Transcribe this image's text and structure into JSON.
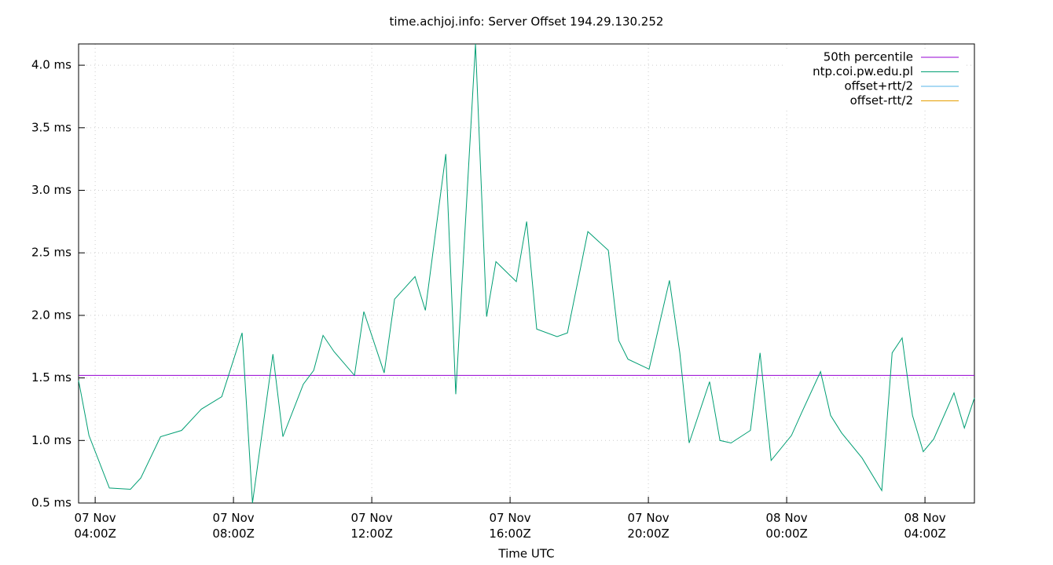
{
  "chart_data": {
    "type": "line",
    "title": "time.achjoj.info: Server Offset 194.29.130.252",
    "x_label": "Time UTC",
    "x": [
      3.52,
      3.82,
      4.41,
      5.02,
      5.32,
      5.89,
      6.5,
      7.07,
      7.66,
      8.25,
      8.55,
      9.14,
      9.43,
      10.02,
      10.32,
      10.59,
      10.91,
      11.5,
      11.77,
      12.36,
      12.66,
      13.25,
      13.55,
      14.14,
      14.43,
      15.0,
      15.32,
      15.59,
      16.18,
      16.48,
      16.77,
      17.36,
      17.66,
      18.25,
      18.84,
      19.14,
      19.41,
      20.02,
      20.61,
      20.91,
      21.18,
      21.77,
      22.07,
      22.39,
      22.95,
      23.23,
      23.55,
      24.14,
      24.43,
      24.98,
      25.27,
      25.59,
      26.18,
      26.75,
      27.05,
      27.34,
      27.64,
      27.95,
      28.25,
      28.84,
      29.14,
      29.43
    ],
    "series": [
      {
        "name": "50th percentile",
        "color": "#9400d3",
        "value": 1.52
      },
      {
        "name": "ntp.coi.pw.edu.pl",
        "color": "#009e73",
        "values": [
          1.48,
          1.04,
          0.62,
          0.61,
          0.7,
          1.03,
          1.08,
          1.25,
          1.35,
          1.86,
          0.5,
          1.69,
          1.03,
          1.45,
          1.56,
          1.84,
          1.71,
          1.52,
          2.03,
          1.54,
          2.13,
          2.31,
          2.04,
          3.29,
          1.37,
          4.17,
          1.99,
          2.43,
          2.27,
          2.75,
          1.89,
          1.83,
          1.86,
          2.67,
          2.52,
          1.8,
          1.65,
          1.57,
          2.28,
          1.7,
          0.98,
          1.47,
          1.0,
          0.98,
          1.08,
          1.7,
          0.84,
          1.04,
          1.22,
          1.55,
          1.2,
          1.06,
          0.86,
          0.6,
          1.7,
          1.82,
          1.2,
          0.91,
          1.01,
          1.38,
          1.1,
          1.34
        ]
      },
      {
        "name": "offset+rtt/2",
        "color": "#56b4e9"
      },
      {
        "name": "offset-rtt/2",
        "color": "#e69f00"
      }
    ],
    "xlim": [
      3.52,
      29.43
    ],
    "xticks": [
      {
        "value": 4,
        "label": "07 Nov\n04:00Z"
      },
      {
        "value": 8,
        "label": "07 Nov\n08:00Z"
      },
      {
        "value": 12,
        "label": "07 Nov\n12:00Z"
      },
      {
        "value": 16,
        "label": "07 Nov\n16:00Z"
      },
      {
        "value": 20,
        "label": "07 Nov\n20:00Z"
      },
      {
        "value": 24,
        "label": "08 Nov\n00:00Z"
      },
      {
        "value": 28,
        "label": "08 Nov\n04:00Z"
      }
    ],
    "ylim": [
      0.5,
      4.17
    ],
    "yticks": [
      {
        "value": 0.5,
        "label": "0.5 ms"
      },
      {
        "value": 1.0,
        "label": "1.0 ms"
      },
      {
        "value": 1.5,
        "label": "1.5 ms"
      },
      {
        "value": 2.0,
        "label": "2.0 ms"
      },
      {
        "value": 2.5,
        "label": "2.5 ms"
      },
      {
        "value": 3.0,
        "label": "3.0 ms"
      },
      {
        "value": 3.5,
        "label": "3.5 ms"
      },
      {
        "value": 4.0,
        "label": "4.0 ms"
      }
    ],
    "grid": true,
    "legend": "top-right"
  }
}
